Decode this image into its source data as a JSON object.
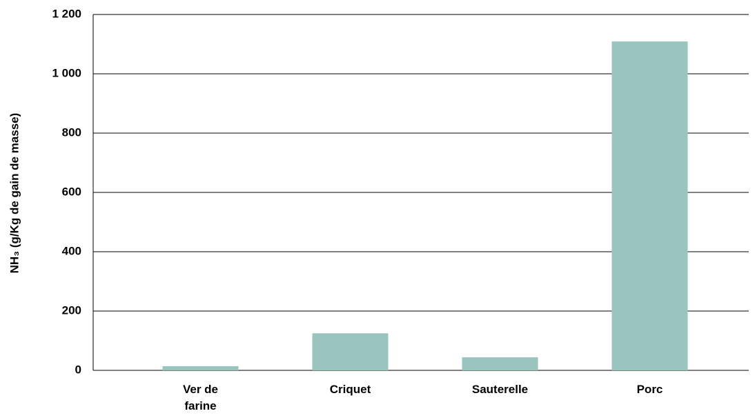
{
  "chart_data": {
    "type": "bar",
    "y_label": "NH₃ (g/Kg de gain de masse)",
    "categories": [
      "Ver de farine",
      "Criquet",
      "Sauterelle",
      "Porc"
    ],
    "values": [
      14,
      125,
      44,
      1109
    ],
    "color": "#9ac5bf",
    "ylim": [
      0,
      1200
    ],
    "yticks": [
      0,
      200,
      400,
      600,
      800,
      {
        "value": 1000,
        "label": "1 000"
      },
      {
        "value": 1200,
        "label": "1 200"
      }
    ],
    "grid": true
  }
}
